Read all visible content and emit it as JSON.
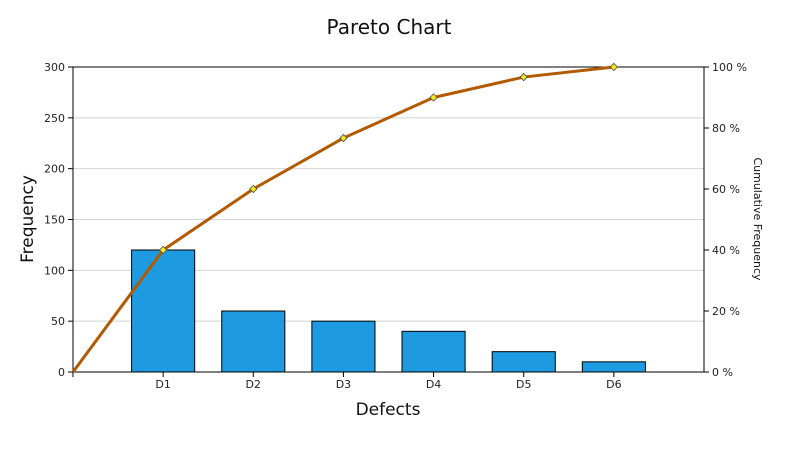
{
  "chart_data": {
    "type": "bar",
    "title": "Pareto Chart",
    "xlabel": "Defects",
    "ylabel": "Frequency",
    "y2label": "Cumulative Frequency",
    "categories": [
      "D1",
      "D2",
      "D3",
      "D4",
      "D5",
      "D6"
    ],
    "ylim": [
      0,
      300
    ],
    "yticks": [
      0,
      50,
      100,
      150,
      200,
      250,
      300
    ],
    "y2lim": [
      0,
      100
    ],
    "y2ticks": [
      "0 %",
      "20 %",
      "40 %",
      "60 %",
      "80 %",
      "100 %"
    ],
    "y2tick_values": [
      0,
      20,
      40,
      60,
      80,
      100
    ],
    "grid": true,
    "series": [
      {
        "type": "bar",
        "axis": "left",
        "values": [
          120,
          60,
          50,
          40,
          20,
          10
        ],
        "color": "#1e9be0"
      },
      {
        "type": "line",
        "axis": "right",
        "x": [
          "",
          "D1",
          "D2",
          "D3",
          "D4",
          "D5",
          "D6"
        ],
        "values": [
          0,
          40,
          60,
          76.7,
          90,
          96.7,
          100
        ],
        "color": "#b35a00",
        "marker_color": "#f2ea1d"
      }
    ]
  }
}
